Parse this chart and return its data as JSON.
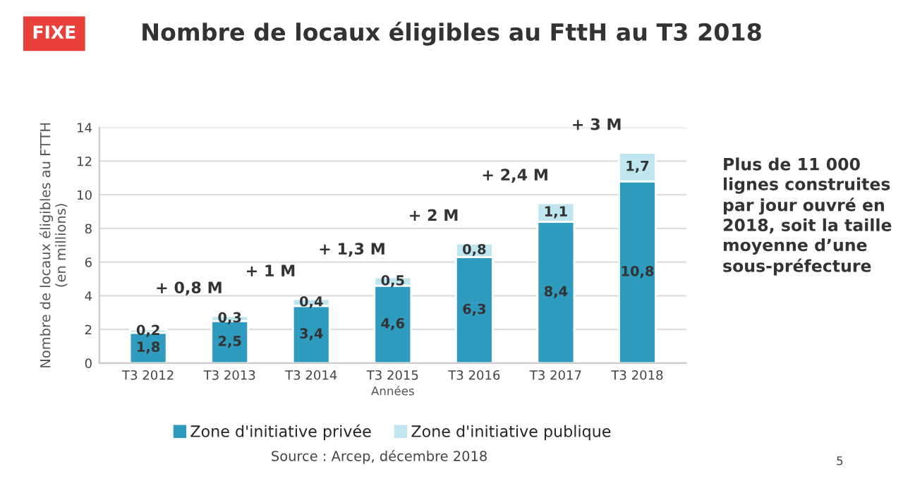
{
  "chart_data": {
    "type": "bar",
    "title": "Nombre de locaux éligibles au FttH au T3 2018",
    "xlabel": "Années",
    "ylabel": "Nombre de locaux éligibles au FTTH\n(en millions)",
    "categories": [
      "T3 2012",
      "T3 2013",
      "T3 2014",
      "T3 2015",
      "T3 2016",
      "T3 2017",
      "T3 2018"
    ],
    "stacked": true,
    "series": [
      {
        "name": "Zone d'initiative privée",
        "color": "#2e9bbf",
        "values": [
          1.8,
          2.5,
          3.4,
          4.6,
          6.3,
          8.4,
          10.8
        ],
        "value_labels": [
          "1,8",
          "2,5",
          "3,4",
          "4,6",
          "6,3",
          "8,4",
          "10,8"
        ]
      },
      {
        "name": "Zone d'initiative publique",
        "color": "#bfe6ee",
        "values": [
          0.2,
          0.3,
          0.4,
          0.5,
          0.8,
          1.1,
          1.7
        ],
        "value_labels": [
          "0,2",
          "0,3",
          "0,4",
          "0,5",
          "0,8",
          "1,1",
          "1,7"
        ]
      }
    ],
    "ylim": [
      0,
      14
    ],
    "yticks": [
      0,
      2,
      4,
      6,
      8,
      10,
      12,
      14
    ],
    "grid": "y",
    "legend": "bottom",
    "annotations": [
      "+ 0,8 M",
      "+ 1 M",
      "+ 1,3 M",
      "+ 2 M",
      "+ 2,4 M",
      "+ 3 M",
      "FIXE",
      "Plus de 11 000\nlignes construites\npar jour ouvré en\n2018, soit la taille\nmoyenne d’une\nsous-préfecture",
      "Source : Arcep, décembre 2018",
      "5"
    ]
  }
}
